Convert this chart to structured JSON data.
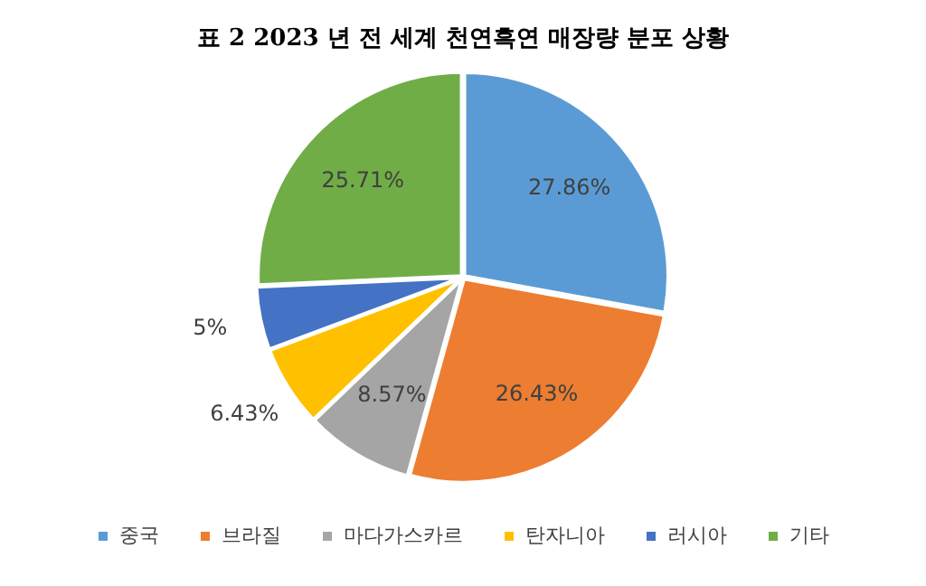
{
  "chart_data": {
    "type": "pie",
    "title": "표 2 2023 년 전 세계 천연흑연 매장량 분포 상황",
    "categories": [
      "중국",
      "브라질",
      "마다가스카르",
      "탄자니아",
      "러시아",
      "기타"
    ],
    "values": [
      27.86,
      26.43,
      8.57,
      6.43,
      5,
      25.71
    ],
    "colors": [
      "#5b9bd5",
      "#ed7d31",
      "#a5a5a5",
      "#ffc000",
      "#4472c4",
      "#70ad47"
    ],
    "value_labels": [
      "27.86%",
      "26.43%",
      "8.57%",
      "6.43%",
      "5%",
      "25.71%"
    ],
    "legend": "bottom"
  }
}
